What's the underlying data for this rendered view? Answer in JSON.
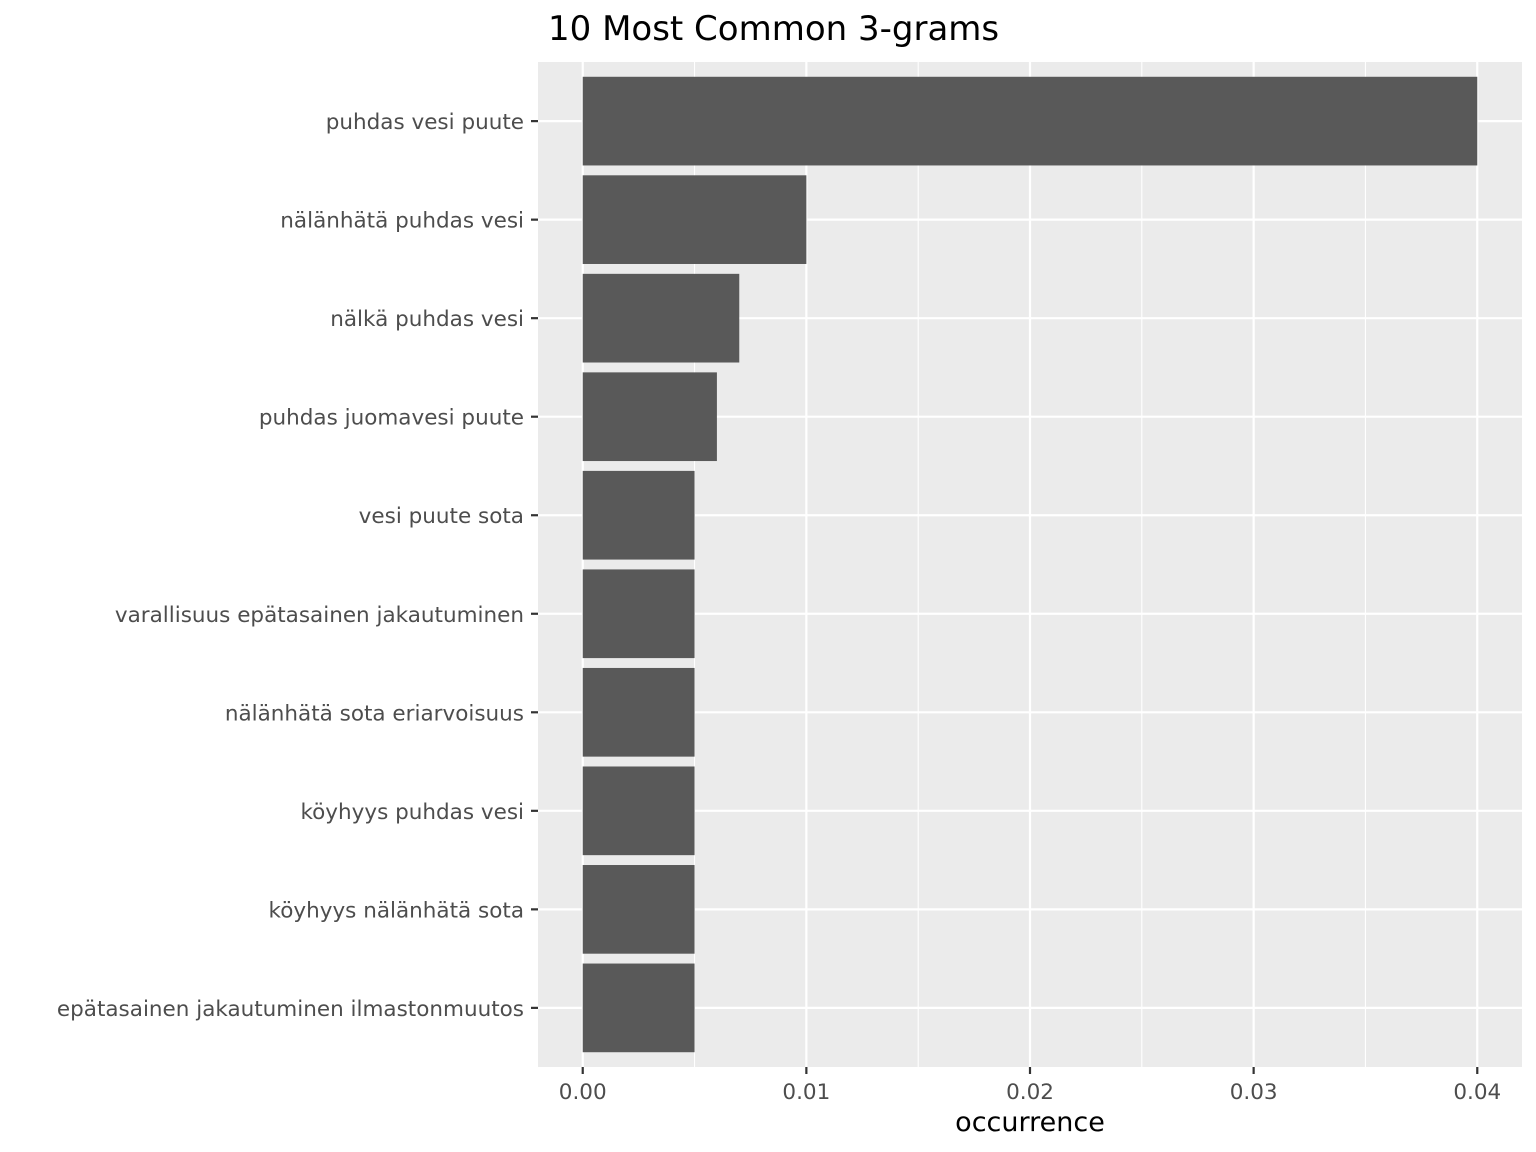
{
  "chart_data": {
    "type": "bar",
    "orientation": "horizontal",
    "title": "10 Most Common 3-grams",
    "xlabel": "occurrence",
    "ylabel": "",
    "categories": [
      "puhdas vesi puute",
      "nälänhätä puhdas vesi",
      "nälkä puhdas vesi",
      "puhdas juomavesi puute",
      "vesi puute sota",
      "varallisuus epätasainen jakautuminen",
      "nälänhätä sota eriarvoisuus",
      "köyhyys puhdas vesi",
      "köyhyys nälänhätä sota",
      "epätasainen jakautuminen ilmastonmuutos"
    ],
    "values": [
      0.04,
      0.01,
      0.007,
      0.006,
      0.005,
      0.005,
      0.005,
      0.005,
      0.005,
      0.005
    ],
    "xlim": [
      -0.002,
      0.042
    ],
    "x_ticks": [
      0.0,
      0.01,
      0.02,
      0.03,
      0.04
    ],
    "x_tick_labels": [
      "0.00",
      "0.01",
      "0.02",
      "0.03",
      "0.04"
    ],
    "grid": true,
    "legend": "none",
    "colors": {
      "bar": "#595959",
      "panel": "#ebebeb",
      "grid": "#ffffff",
      "text": "#4d4d4d"
    }
  }
}
